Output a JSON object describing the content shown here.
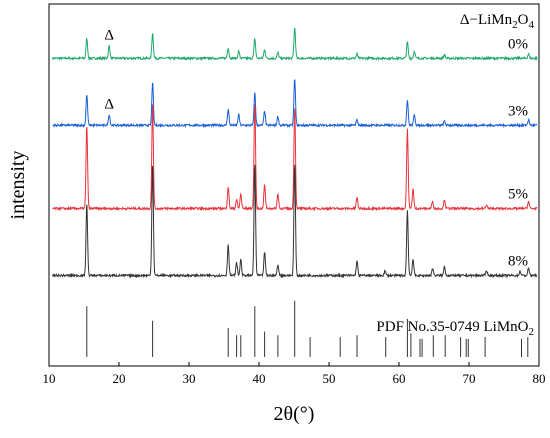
{
  "chart_data": {
    "type": "line",
    "xlabel": "2θ(°)",
    "ylabel": "intensity",
    "xlim": [
      10,
      80
    ],
    "xticks": [
      10,
      20,
      30,
      40,
      50,
      60,
      70,
      80
    ],
    "legend_note": "Δ−LiMn2O4",
    "series": [
      {
        "name": "0%",
        "color": "#1fa86a",
        "offset": 0.85,
        "peaks": [
          {
            "x": 15.4,
            "h": 0.055
          },
          {
            "x": 18.6,
            "h": 0.035
          },
          {
            "x": 24.8,
            "h": 0.07
          },
          {
            "x": 35.6,
            "h": 0.03
          },
          {
            "x": 37.1,
            "h": 0.02
          },
          {
            "x": 39.4,
            "h": 0.055
          },
          {
            "x": 40.8,
            "h": 0.025
          },
          {
            "x": 42.7,
            "h": 0.015
          },
          {
            "x": 45.1,
            "h": 0.085
          },
          {
            "x": 54.0,
            "h": 0.012
          },
          {
            "x": 61.2,
            "h": 0.045
          },
          {
            "x": 62.2,
            "h": 0.02
          },
          {
            "x": 66.5,
            "h": 0.01
          },
          {
            "x": 78.5,
            "h": 0.012
          }
        ],
        "marker_x": 18.6
      },
      {
        "name": "3%",
        "color": "#1b5fd6",
        "offset": 0.665,
        "peaks": [
          {
            "x": 15.4,
            "h": 0.085
          },
          {
            "x": 18.6,
            "h": 0.03
          },
          {
            "x": 24.8,
            "h": 0.12
          },
          {
            "x": 35.6,
            "h": 0.045
          },
          {
            "x": 37.1,
            "h": 0.03
          },
          {
            "x": 39.4,
            "h": 0.09
          },
          {
            "x": 40.8,
            "h": 0.04
          },
          {
            "x": 42.7,
            "h": 0.025
          },
          {
            "x": 45.1,
            "h": 0.13
          },
          {
            "x": 54.0,
            "h": 0.015
          },
          {
            "x": 61.2,
            "h": 0.07
          },
          {
            "x": 62.2,
            "h": 0.03
          },
          {
            "x": 66.5,
            "h": 0.012
          },
          {
            "x": 78.5,
            "h": 0.015
          }
        ],
        "marker_x": 18.6
      },
      {
        "name": "5%",
        "color": "#e8333b",
        "offset": 0.435,
        "peaks": [
          {
            "x": 15.4,
            "h": 0.23
          },
          {
            "x": 24.8,
            "h": 0.29
          },
          {
            "x": 35.6,
            "h": 0.06
          },
          {
            "x": 36.8,
            "h": 0.025
          },
          {
            "x": 37.4,
            "h": 0.04
          },
          {
            "x": 39.4,
            "h": 0.29
          },
          {
            "x": 40.8,
            "h": 0.065
          },
          {
            "x": 42.7,
            "h": 0.04
          },
          {
            "x": 45.1,
            "h": 0.28
          },
          {
            "x": 54.0,
            "h": 0.03
          },
          {
            "x": 61.2,
            "h": 0.22
          },
          {
            "x": 62.0,
            "h": 0.055
          },
          {
            "x": 64.8,
            "h": 0.02
          },
          {
            "x": 66.5,
            "h": 0.025
          },
          {
            "x": 72.5,
            "h": 0.01
          },
          {
            "x": 78.5,
            "h": 0.02
          }
        ]
      },
      {
        "name": "8%",
        "color": "#333333",
        "offset": 0.25,
        "peaks": [
          {
            "x": 15.4,
            "h": 0.2
          },
          {
            "x": 24.8,
            "h": 0.31
          },
          {
            "x": 35.6,
            "h": 0.085
          },
          {
            "x": 36.8,
            "h": 0.035
          },
          {
            "x": 37.4,
            "h": 0.045
          },
          {
            "x": 39.4,
            "h": 0.31
          },
          {
            "x": 40.8,
            "h": 0.065
          },
          {
            "x": 42.7,
            "h": 0.03
          },
          {
            "x": 45.1,
            "h": 0.31
          },
          {
            "x": 54.0,
            "h": 0.04
          },
          {
            "x": 58.0,
            "h": 0.012
          },
          {
            "x": 61.2,
            "h": 0.18
          },
          {
            "x": 62.0,
            "h": 0.045
          },
          {
            "x": 64.8,
            "h": 0.02
          },
          {
            "x": 66.5,
            "h": 0.025
          },
          {
            "x": 72.5,
            "h": 0.015
          },
          {
            "x": 77.3,
            "h": 0.012
          },
          {
            "x": 78.5,
            "h": 0.02
          }
        ]
      }
    ],
    "reference": {
      "name": "PDF No.35-0749 LiMnO2",
      "color": "#333333",
      "peaks": [
        {
          "x": 15.4,
          "h": 0.14
        },
        {
          "x": 24.8,
          "h": 0.1
        },
        {
          "x": 35.6,
          "h": 0.08
        },
        {
          "x": 36.8,
          "h": 0.06
        },
        {
          "x": 37.4,
          "h": 0.06
        },
        {
          "x": 39.4,
          "h": 0.14
        },
        {
          "x": 40.8,
          "h": 0.07
        },
        {
          "x": 42.7,
          "h": 0.06
        },
        {
          "x": 45.1,
          "h": 0.155
        },
        {
          "x": 47.3,
          "h": 0.055
        },
        {
          "x": 51.6,
          "h": 0.055
        },
        {
          "x": 54.0,
          "h": 0.06
        },
        {
          "x": 58.1,
          "h": 0.055
        },
        {
          "x": 61.2,
          "h": 0.105
        },
        {
          "x": 61.7,
          "h": 0.065
        },
        {
          "x": 63.0,
          "h": 0.05
        },
        {
          "x": 63.3,
          "h": 0.05
        },
        {
          "x": 64.9,
          "h": 0.06
        },
        {
          "x": 66.6,
          "h": 0.06
        },
        {
          "x": 68.8,
          "h": 0.055
        },
        {
          "x": 69.6,
          "h": 0.05
        },
        {
          "x": 69.9,
          "h": 0.05
        },
        {
          "x": 72.3,
          "h": 0.055
        },
        {
          "x": 77.5,
          "h": 0.05
        },
        {
          "x": 78.4,
          "h": 0.055
        }
      ]
    },
    "grid": false
  }
}
